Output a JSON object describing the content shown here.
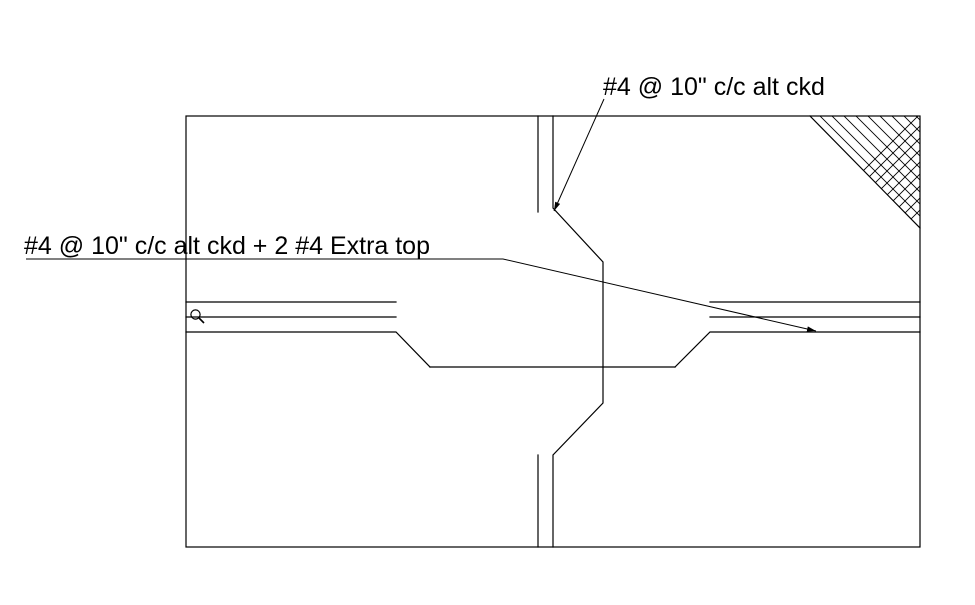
{
  "labels": {
    "top_callout": "#4 @ 10\" c/c alt ckd",
    "left_callout": "#4 @ 10\" c/c alt ckd + 2 #4 Extra top"
  },
  "colors": {
    "background": "#ffffff",
    "line": "#000000"
  },
  "icons": {
    "snap_marker": "magnifier-icon"
  }
}
